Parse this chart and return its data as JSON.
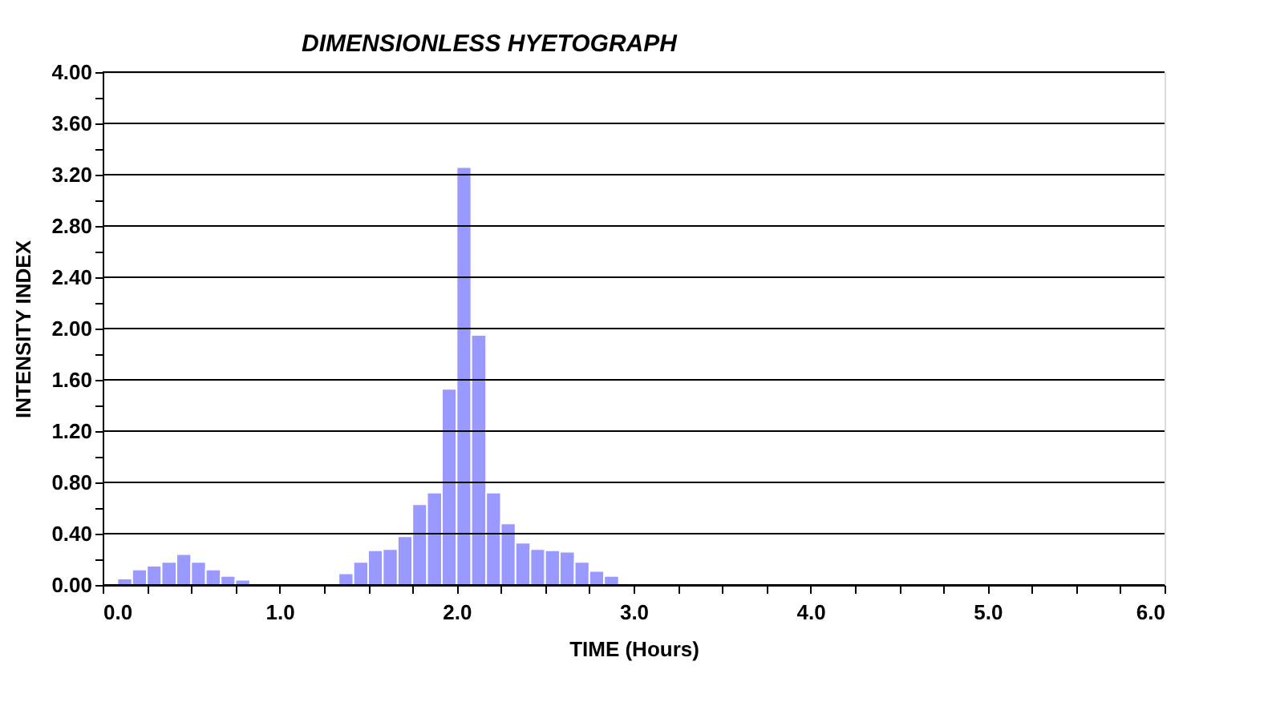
{
  "chart_data": {
    "type": "histogram",
    "title": "DIMENSIONLESS HYETOGRAPH",
    "xlabel": "TIME (Hours)",
    "ylabel": "INTENSITY INDEX",
    "bins": [
      0,
      0.083,
      0.167,
      0.25,
      0.333,
      0.417,
      0.5,
      0.583,
      0.667,
      0.75,
      0.833,
      0.917,
      1.0,
      1.083,
      1.167,
      1.25,
      1.333,
      1.417,
      1.5,
      1.583,
      1.667,
      1.75,
      1.833,
      1.917,
      2.0,
      2.083,
      2.167,
      2.25,
      2.333,
      2.417,
      2.5,
      2.583,
      2.667,
      2.75,
      2.833,
      2.917
    ],
    "values": [
      0,
      0.05,
      0.12,
      0.15,
      0.18,
      0.24,
      0.18,
      0.12,
      0.07,
      0.04,
      0,
      0,
      0,
      0,
      0,
      0,
      0.09,
      0.18,
      0.27,
      0.28,
      0.38,
      0.63,
      0.72,
      1.53,
      3.26,
      1.95,
      0.72,
      0.48,
      0.33,
      0.28,
      0.27,
      0.26,
      0.18,
      0.11,
      0.07
    ],
    "color": "#9999ff",
    "xlim": [
      0,
      6
    ],
    "ylim": [
      0,
      4
    ],
    "xticks": [
      {
        "value": 0,
        "label": "0.0"
      },
      {
        "value": 0.25,
        "label": null
      },
      {
        "value": 0.5,
        "label": null
      },
      {
        "value": 0.75,
        "label": null
      },
      {
        "value": 1,
        "label": "1.0"
      },
      {
        "value": 1.25,
        "label": null
      },
      {
        "value": 1.5,
        "label": null
      },
      {
        "value": 1.75,
        "label": null
      },
      {
        "value": 2,
        "label": "2.0"
      },
      {
        "value": 2.25,
        "label": null
      },
      {
        "value": 2.5,
        "label": null
      },
      {
        "value": 2.75,
        "label": null
      },
      {
        "value": 3,
        "label": "3.0"
      },
      {
        "value": 3.25,
        "label": null
      },
      {
        "value": 3.5,
        "label": null
      },
      {
        "value": 3.75,
        "label": null
      },
      {
        "value": 4,
        "label": "4.0"
      },
      {
        "value": 4.25,
        "label": null
      },
      {
        "value": 4.5,
        "label": null
      },
      {
        "value": 4.75,
        "label": null
      },
      {
        "value": 5,
        "label": "5.0"
      },
      {
        "value": 5.25,
        "label": null
      },
      {
        "value": 5.5,
        "label": null
      },
      {
        "value": 5.75,
        "label": null
      },
      {
        "value": 6,
        "label": "6.0"
      }
    ],
    "yticks": [
      {
        "value": 0,
        "label": "0.00"
      },
      {
        "value": 0.2,
        "label": null
      },
      {
        "value": 0.4,
        "label": "0.40"
      },
      {
        "value": 0.6,
        "label": null
      },
      {
        "value": 0.8,
        "label": "0.80"
      },
      {
        "value": 1.0,
        "label": null
      },
      {
        "value": 1.2,
        "label": "1.20"
      },
      {
        "value": 1.4,
        "label": null
      },
      {
        "value": 1.6,
        "label": "1.60"
      },
      {
        "value": 1.8,
        "label": null
      },
      {
        "value": 2.0,
        "label": "2.00"
      },
      {
        "value": 2.2,
        "label": null
      },
      {
        "value": 2.4,
        "label": "2.40"
      },
      {
        "value": 2.6,
        "label": null
      },
      {
        "value": 2.8,
        "label": "2.80"
      },
      {
        "value": 3.0,
        "label": null
      },
      {
        "value": 3.2,
        "label": "3.20"
      },
      {
        "value": 3.4,
        "label": null
      },
      {
        "value": 3.6,
        "label": "3.60"
      },
      {
        "value": 3.8,
        "label": null
      },
      {
        "value": 4.0,
        "label": "4.00"
      }
    ],
    "grid": "y"
  }
}
